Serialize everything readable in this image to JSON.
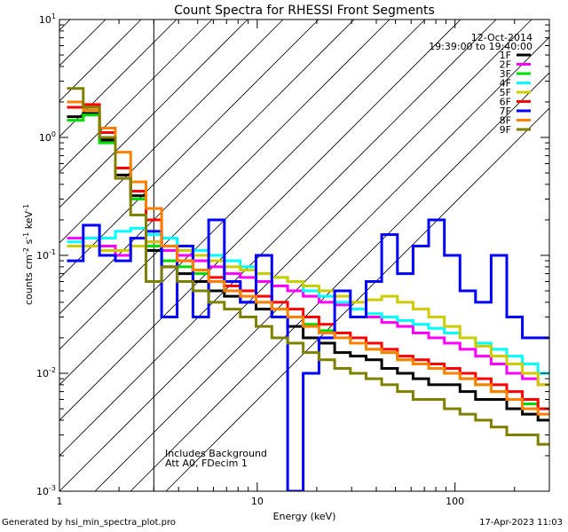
{
  "chart_data": {
    "type": "line",
    "step": true,
    "title": "Count Spectra for RHESSI Front Segments",
    "xlabel": "Energy (keV)",
    "ylabel_parts": [
      "counts cm",
      "-2",
      " s",
      "-1",
      " keV",
      "-1"
    ],
    "x_scale": "log",
    "y_scale": "log",
    "xlim": [
      1,
      300
    ],
    "ylim": [
      0.001,
      10
    ],
    "x_ticks": [
      {
        "v": 1,
        "label": "1"
      },
      {
        "v": 10,
        "label": "10"
      },
      {
        "v": 100,
        "label": "100"
      }
    ],
    "y_ticks": [
      {
        "v": 0.001,
        "base": "10",
        "exp": "-3"
      },
      {
        "v": 0.01,
        "base": "10",
        "exp": "-2"
      },
      {
        "v": 0.1,
        "base": "10",
        "exp": "-1"
      },
      {
        "v": 1,
        "base": "10",
        "exp": "0"
      },
      {
        "v": 10,
        "base": "10",
        "exp": "1"
      }
    ],
    "hatched_region": {
      "x_from": 1,
      "x_to": 3
    },
    "info": {
      "date": "12-Oct-2014",
      "time_range": "19:39:00 to 19:40:00"
    },
    "annotations": [
      "Includes Background",
      "Att A0, FDecim 1"
    ],
    "series": [
      {
        "name": "1F",
        "color": "#000000",
        "values": [
          1.5,
          1.6,
          0.95,
          0.48,
          0.32,
          0.11,
          0.08,
          0.07,
          0.06,
          0.05,
          0.045,
          0.04,
          0.035,
          0.03,
          0.025,
          0.02,
          0.018,
          0.015,
          0.014,
          0.013,
          0.011,
          0.01,
          0.009,
          0.008,
          0.008,
          0.007,
          0.006,
          0.006,
          0.005,
          0.0045,
          0.004
        ]
      },
      {
        "name": "2F",
        "color": "#ff00ff",
        "values": [
          0.14,
          0.14,
          0.12,
          0.1,
          0.12,
          0.13,
          0.11,
          0.1,
          0.09,
          0.08,
          0.07,
          0.065,
          0.06,
          0.055,
          0.05,
          0.045,
          0.04,
          0.038,
          0.035,
          0.03,
          0.027,
          0.025,
          0.022,
          0.02,
          0.018,
          0.016,
          0.014,
          0.012,
          0.01,
          0.009,
          0.008
        ]
      },
      {
        "name": "3F",
        "color": "#00dd00",
        "values": [
          1.4,
          1.55,
          0.9,
          0.55,
          0.3,
          0.12,
          0.09,
          0.08,
          0.07,
          0.06,
          0.055,
          0.05,
          0.04,
          0.035,
          0.03,
          0.026,
          0.023,
          0.02,
          0.018,
          0.016,
          0.015,
          0.013,
          0.012,
          0.011,
          0.01,
          0.009,
          0.008,
          0.007,
          0.006,
          0.0055,
          0.005
        ]
      },
      {
        "name": "4F",
        "color": "#00ffff",
        "values": [
          0.13,
          0.14,
          0.14,
          0.16,
          0.17,
          0.15,
          0.14,
          0.12,
          0.11,
          0.1,
          0.09,
          0.08,
          0.07,
          0.065,
          0.06,
          0.05,
          0.045,
          0.04,
          0.035,
          0.032,
          0.03,
          0.028,
          0.026,
          0.024,
          0.022,
          0.02,
          0.018,
          0.016,
          0.014,
          0.012,
          0.01
        ]
      },
      {
        "name": "5F",
        "color": "#cccc00",
        "values": [
          0.12,
          0.12,
          0.11,
          0.11,
          0.12,
          0.13,
          0.12,
          0.11,
          0.1,
          0.09,
          0.08,
          0.075,
          0.07,
          0.065,
          0.06,
          0.055,
          0.05,
          0.045,
          0.04,
          0.042,
          0.045,
          0.04,
          0.035,
          0.03,
          0.025,
          0.02,
          0.017,
          0.014,
          0.012,
          0.01,
          0.008
        ]
      },
      {
        "name": "6F",
        "color": "#ff0000",
        "values": [
          1.8,
          1.9,
          1.1,
          0.55,
          0.35,
          0.2,
          0.12,
          0.09,
          0.075,
          0.065,
          0.055,
          0.05,
          0.045,
          0.04,
          0.035,
          0.03,
          0.026,
          0.022,
          0.02,
          0.018,
          0.016,
          0.014,
          0.013,
          0.012,
          0.011,
          0.01,
          0.009,
          0.008,
          0.007,
          0.006,
          0.005
        ]
      },
      {
        "name": "7F",
        "color": "#0000ff",
        "values": [
          0.09,
          0.18,
          0.1,
          0.09,
          0.14,
          0.16,
          0.03,
          0.12,
          0.03,
          0.2,
          0.06,
          0.04,
          0.1,
          0.03,
          0.001,
          0.01,
          0.02,
          0.05,
          0.03,
          0.06,
          0.15,
          0.07,
          0.12,
          0.2,
          0.1,
          0.05,
          0.04,
          0.1,
          0.03,
          0.02,
          0.02
        ]
      },
      {
        "name": "8F",
        "color": "#ff8000",
        "values": [
          2.0,
          1.7,
          1.2,
          0.75,
          0.42,
          0.25,
          0.12,
          0.09,
          0.075,
          0.06,
          0.05,
          0.045,
          0.04,
          0.035,
          0.03,
          0.025,
          0.022,
          0.02,
          0.018,
          0.016,
          0.015,
          0.013,
          0.012,
          0.011,
          0.01,
          0.009,
          0.008,
          0.007,
          0.006,
          0.005,
          0.0045
        ]
      },
      {
        "name": "9F",
        "color": "#808000",
        "values": [
          2.6,
          1.8,
          1.0,
          0.45,
          0.22,
          0.06,
          0.08,
          0.06,
          0.05,
          0.04,
          0.035,
          0.03,
          0.025,
          0.02,
          0.018,
          0.015,
          0.013,
          0.011,
          0.01,
          0.009,
          0.008,
          0.007,
          0.006,
          0.006,
          0.005,
          0.0045,
          0.004,
          0.0035,
          0.003,
          0.003,
          0.0025
        ]
      }
    ],
    "x_bins_keV": [
      1.2,
      1.45,
      1.75,
      2.1,
      2.5,
      3.0,
      3.6,
      4.3,
      5.2,
      6.2,
      7.5,
      9.0,
      10.8,
      13,
      15.6,
      18.7,
      22.5,
      27,
      32.4,
      38.9,
      46.7,
      56,
      67.2,
      80.6,
      96.8,
      116,
      139,
      167,
      200,
      240,
      288
    ]
  },
  "footer": {
    "generated_by": "Generated by hsi_min_spectra_plot.pro",
    "timestamp": "17-Apr-2023 11:03"
  }
}
